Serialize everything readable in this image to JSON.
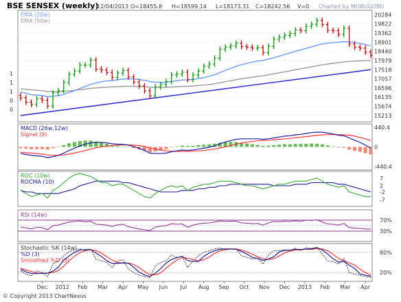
{
  "header": {
    "title": "BSE SENSEX (weekly)",
    "date": "12/04/2013",
    "open": "O=18455.8",
    "high": "H=18599.14",
    "low": "L=18173.31",
    "close": "C=18242.56",
    "volume": "V=0",
    "credit": "Charted by MOBUGOBU"
  },
  "footer": {
    "copyright": "© Copyright 2013 ChartNexus"
  },
  "colors": {
    "up": "#009900",
    "down": "#cc0000",
    "ema20": "#6699ff",
    "ema50": "#999999",
    "trend": "#3333cc",
    "macd": "#1a1aa0",
    "signal": "#ff3333",
    "roc": "#33aa33",
    "rocma": "#1a1a99",
    "rsi": "#993399",
    "guide": "#993399"
  },
  "chart_data": [
    {
      "type": "candlestick",
      "title": "BSE SENSEX (weekly)",
      "legend": [
        "EMA (20w)",
        "EMA (50w)"
      ],
      "y_ticks": [
        "20284",
        "19822",
        "19362",
        "18901",
        "18440",
        "17979",
        "17518",
        "17057",
        "16596",
        "16135",
        "15674",
        "15213"
      ],
      "left_ticks": [
        "1",
        "1",
        "1",
        "0",
        "0"
      ],
      "x_ticks": [
        "Dec",
        "2012",
        "Feb",
        "Mar",
        "Apr",
        "May",
        "Jun",
        "Jul",
        "Aug",
        "Sep",
        "Oct",
        "Nov",
        "Dec",
        "2013",
        "Feb",
        "Mar",
        "Apr"
      ],
      "ylim": [
        15000,
        20400
      ],
      "close": [
        16100,
        15880,
        15770,
        16050,
        15980,
        15690,
        16350,
        16460,
        16870,
        17280,
        17450,
        17750,
        17750,
        18000,
        17550,
        17490,
        17380,
        17130,
        17350,
        17480,
        17150,
        16900,
        16700,
        16450,
        16200,
        16650,
        16780,
        16920,
        17250,
        17300,
        17390,
        17020,
        17250,
        17450,
        17690,
        17800,
        18100,
        18550,
        18650,
        18720,
        18850,
        18680,
        18650,
        18600,
        18620,
        18370,
        18700,
        19050,
        19150,
        19250,
        19340,
        19520,
        19480,
        19700,
        19800,
        19990,
        19790,
        19500,
        19480,
        19300,
        19600,
        18800,
        18650,
        18600,
        18400,
        18242.56
      ],
      "ema20": [
        16400,
        16330,
        16260,
        16240,
        16210,
        16160,
        16180,
        16210,
        16270,
        16370,
        16460,
        16570,
        16670,
        16780,
        16850,
        16910,
        16950,
        16970,
        17010,
        17050,
        17060,
        17050,
        17020,
        16980,
        16920,
        16890,
        16880,
        16880,
        16920,
        16960,
        17000,
        17000,
        17030,
        17070,
        17120,
        17180,
        17260,
        17370,
        17480,
        17580,
        17690,
        17770,
        17840,
        17900,
        17950,
        17980,
        18050,
        18120,
        18200,
        18280,
        18360,
        18440,
        18510,
        18590,
        18670,
        18750,
        18810,
        18850,
        18880,
        18900,
        18930,
        18910,
        18880,
        18840,
        18780,
        18720
      ],
      "ema50": [
        16550,
        16530,
        16500,
        16480,
        16460,
        16420,
        16410,
        16410,
        16420,
        16450,
        16480,
        16510,
        16540,
        16580,
        16600,
        16620,
        16640,
        16650,
        16660,
        16680,
        16680,
        16680,
        16670,
        16660,
        16640,
        16630,
        16630,
        16630,
        16640,
        16660,
        16680,
        16680,
        16700,
        16720,
        16740,
        16770,
        16810,
        16860,
        16910,
        16960,
        17010,
        17060,
        17100,
        17140,
        17180,
        17210,
        17260,
        17310,
        17360,
        17410,
        17460,
        17510,
        17560,
        17610,
        17660,
        17710,
        17760,
        17800,
        17840,
        17870,
        17910,
        17930,
        17950,
        17960,
        17970,
        17980
      ],
      "trendline": [
        [
          0,
          15210
        ],
        [
          65,
          17520
        ]
      ]
    },
    {
      "type": "line",
      "title": "MACD (26w,12w)",
      "series": [
        {
          "name": "MACD (26w,12w)",
          "values": [
            -150,
            -170,
            -190,
            -200,
            -210,
            -240,
            -220,
            -190,
            -140,
            -80,
            -30,
            20,
            60,
            90,
            100,
            100,
            90,
            70,
            60,
            55,
            40,
            10,
            -30,
            -80,
            -140,
            -150,
            -150,
            -140,
            -110,
            -90,
            -70,
            -80,
            -70,
            -50,
            -30,
            -10,
            20,
            70,
            110,
            140,
            170,
            180,
            180,
            180,
            180,
            170,
            180,
            200,
            220,
            240,
            250,
            270,
            280,
            300,
            320,
            330,
            330,
            310,
            290,
            260,
            250,
            200,
            150,
            100,
            40,
            -30
          ]
        },
        {
          "name": "Signal (9)",
          "values": [
            -120,
            -130,
            -140,
            -150,
            -160,
            -180,
            -190,
            -190,
            -180,
            -160,
            -140,
            -110,
            -80,
            -50,
            -20,
            0,
            20,
            30,
            40,
            45,
            45,
            40,
            30,
            10,
            -20,
            -50,
            -70,
            -90,
            -100,
            -100,
            -100,
            -100,
            -95,
            -90,
            -80,
            -65,
            -50,
            -25,
            0,
            30,
            60,
            85,
            105,
            120,
            135,
            145,
            150,
            160,
            170,
            180,
            190,
            205,
            215,
            230,
            245,
            260,
            270,
            275,
            278,
            275,
            270,
            260,
            240,
            210,
            180,
            140
          ]
        },
        {
          "name": "Histogram",
          "values": [
            -30,
            -40,
            -50,
            -50,
            -50,
            -60,
            -30,
            0,
            40,
            80,
            110,
            130,
            140,
            140,
            120,
            100,
            70,
            40,
            20,
            10,
            -5,
            -30,
            -60,
            -90,
            -120,
            -100,
            -80,
            -50,
            -10,
            10,
            30,
            20,
            25,
            40,
            50,
            55,
            70,
            95,
            110,
            110,
            110,
            95,
            75,
            60,
            45,
            25,
            30,
            40,
            50,
            60,
            60,
            65,
            65,
            70,
            75,
            70,
            60,
            35,
            12,
            -15,
            -20,
            -60,
            -90,
            -110,
            -140,
            -170
          ]
        }
      ],
      "y_ticks": [
        "440.4",
        "0",
        "-440.4"
      ],
      "ylim": [
        -470,
        470
      ]
    },
    {
      "type": "line",
      "title": "ROC (10w)",
      "series": [
        {
          "name": "ROC (10w)",
          "values": [
            -1,
            -3,
            -5,
            -4,
            -3,
            -6,
            -1,
            1,
            4,
            7,
            9,
            10,
            9,
            8,
            6,
            4,
            4,
            2,
            3,
            3,
            1,
            -1,
            -3,
            -5,
            -6,
            -3,
            -1,
            1,
            2,
            1,
            2,
            -1,
            1,
            2,
            3,
            3,
            4,
            5,
            5,
            5,
            4,
            3,
            2,
            2,
            1,
            0,
            1,
            2,
            3,
            3,
            4,
            5,
            5,
            5,
            6,
            7,
            5,
            3,
            2,
            1,
            2,
            -2,
            -3,
            -4,
            -5,
            -5
          ]
        },
        {
          "name": "ROCMA (10)",
          "values": [
            -1,
            -2,
            -2,
            -3,
            -3,
            -3,
            -3,
            -3,
            -2,
            -1,
            0,
            2,
            3,
            4,
            5,
            5,
            5,
            5,
            5,
            4,
            4,
            3,
            2,
            1,
            0,
            -1,
            -2,
            -2,
            -2,
            -2,
            -1,
            -1,
            -1,
            0,
            0,
            1,
            1,
            2,
            2,
            3,
            3,
            3,
            3,
            3,
            3,
            3,
            3,
            2,
            2,
            2,
            2,
            3,
            3,
            3,
            4,
            4,
            4,
            4,
            4,
            3,
            3,
            2,
            1,
            0,
            -1,
            -2
          ]
        }
      ],
      "y_ticks": [
        "7",
        "2",
        "-2",
        "-7"
      ],
      "ylim": [
        -10,
        10
      ]
    },
    {
      "type": "line",
      "title": "RSI (14w)",
      "series": [
        {
          "name": "RSI (14w)",
          "values": [
            45,
            42,
            38,
            44,
            43,
            35,
            50,
            52,
            58,
            63,
            65,
            67,
            64,
            66,
            55,
            54,
            52,
            47,
            53,
            55,
            46,
            42,
            38,
            35,
            32,
            45,
            48,
            50,
            57,
            55,
            56,
            44,
            52,
            56,
            59,
            60,
            63,
            67,
            65,
            66,
            66,
            60,
            59,
            57,
            58,
            52,
            60,
            65,
            64,
            66,
            65,
            68,
            65,
            70,
            69,
            71,
            63,
            56,
            55,
            52,
            58,
            43,
            41,
            40,
            38,
            37
          ]
        }
      ],
      "y_ticks": [
        "70%",
        "30%"
      ],
      "guides": [
        70,
        50,
        30
      ],
      "ylim": [
        0,
        100
      ]
    },
    {
      "type": "line",
      "title": "Stochastic %K (14w)",
      "series": [
        {
          "name": "Stochastic %K (14w)",
          "values": [
            25,
            15,
            10,
            25,
            20,
            8,
            45,
            55,
            70,
            82,
            88,
            90,
            85,
            90,
            60,
            55,
            50,
            35,
            55,
            58,
            30,
            20,
            12,
            8,
            5,
            40,
            50,
            55,
            72,
            65,
            68,
            35,
            55,
            70,
            80,
            85,
            90,
            93,
            88,
            90,
            90,
            70,
            65,
            60,
            62,
            45,
            72,
            85,
            85,
            88,
            86,
            92,
            85,
            94,
            92,
            95,
            75,
            55,
            52,
            45,
            62,
            20,
            15,
            12,
            8,
            6
          ]
        },
        {
          "name": "%D (3)",
          "values": [
            30,
            22,
            17,
            17,
            18,
            18,
            24,
            36,
            57,
            69,
            80,
            87,
            88,
            88,
            78,
            68,
            55,
            47,
            47,
            49,
            48,
            36,
            21,
            13,
            8,
            18,
            32,
            48,
            59,
            64,
            68,
            56,
            53,
            53,
            68,
            78,
            85,
            89,
            90,
            90,
            89,
            83,
            75,
            65,
            62,
            56,
            60,
            67,
            81,
            86,
            86,
            89,
            88,
            90,
            90,
            94,
            87,
            75,
            61,
            51,
            53,
            42,
            32,
            16,
            12,
            9
          ]
        },
        {
          "name": "Smoothed %D (3)",
          "values": [
            33,
            28,
            23,
            19,
            17,
            18,
            20,
            26,
            39,
            54,
            69,
            79,
            85,
            88,
            85,
            78,
            67,
            57,
            50,
            48,
            48,
            44,
            35,
            23,
            14,
            13,
            19,
            33,
            46,
            57,
            64,
            63,
            59,
            54,
            58,
            66,
            77,
            84,
            88,
            90,
            90,
            87,
            82,
            74,
            67,
            61,
            59,
            61,
            69,
            78,
            84,
            87,
            88,
            89,
            89,
            91,
            90,
            85,
            74,
            62,
            55,
            49,
            42,
            30,
            20,
            12
          ]
        }
      ],
      "y_ticks": [
        "80%",
        "20%"
      ],
      "guides": [
        80,
        20
      ],
      "ylim": [
        0,
        100
      ]
    }
  ]
}
